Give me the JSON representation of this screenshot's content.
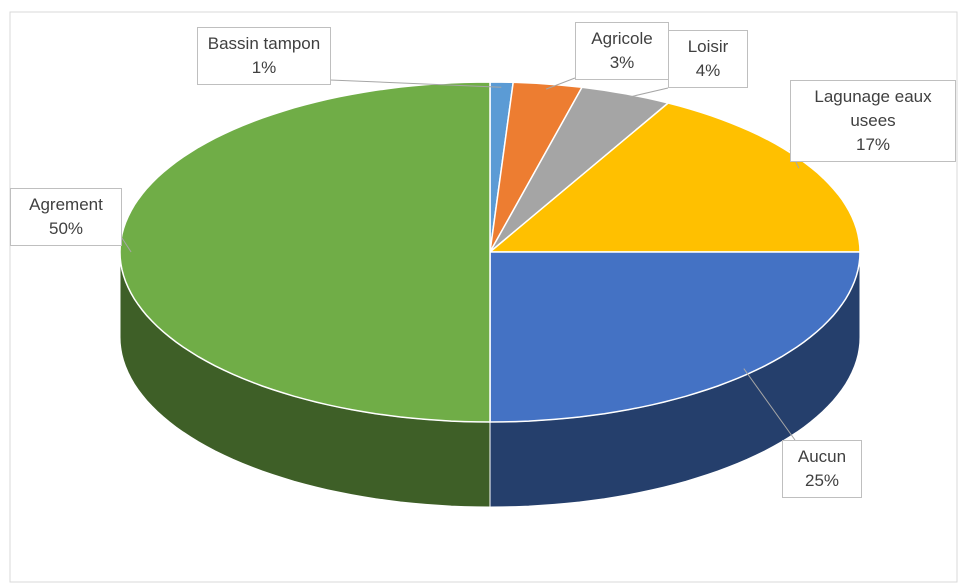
{
  "chart_data": {
    "type": "pie",
    "is_3d": true,
    "categories": [
      "Bassin tampon",
      "Agricole",
      "Loisir",
      "Lagunage eaux usees",
      "Aucun",
      "Agrement"
    ],
    "values": [
      1,
      3,
      4,
      17,
      25,
      50
    ],
    "value_labels": [
      "1%",
      "3%",
      "4%",
      "17%",
      "25%",
      "50%"
    ],
    "colors": [
      "#5b9bd5",
      "#ed7d31",
      "#a5a5a5",
      "#ffc000",
      "#4472c4",
      "#70ad47"
    ]
  }
}
